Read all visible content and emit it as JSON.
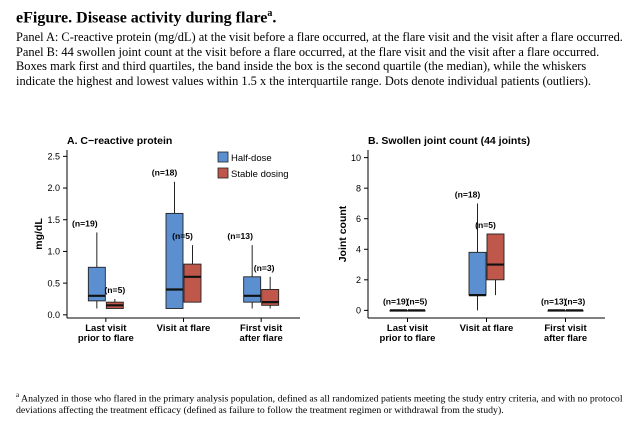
{
  "header": {
    "title": "eFigure. Disease activity during flare",
    "title_sup": "a",
    "title_end": ".",
    "caption": "Panel A: C-reactive protein (mg/dL) at the visit before a flare occurred, at the flare visit and the visit after a flare occurred. Panel B: 44 swollen joint count at the visit before a flare occurred, at the flare visit and the visit after a flare occurred. Boxes mark first and third quartiles, the band inside the box is the second quartile (the median), while the whiskers indicate the highest and lowest values within 1.5 x the interquartile range. Dots denote individual patients (outliers)."
  },
  "footnote": {
    "sup": "a",
    "text": " Analyzed in those who flared in the primary analysis population, defined as all randomized patients meeting the study entry criteria, and with no protocol deviations affecting the treatment efficacy (defined as failure to follow the treatment regimen or withdrawal from the study)."
  },
  "legend": {
    "items": [
      {
        "label": "Half-dose",
        "color": "#5b8fd0"
      },
      {
        "label": "Stable dosing",
        "color": "#c0574b"
      }
    ]
  },
  "chart_data": [
    {
      "type": "box",
      "title": "A. C−reactive protein",
      "ylabel": "mg/dL",
      "xlabel": "",
      "ylim": [
        -0.05,
        2.6
      ],
      "yticks": [
        0.0,
        0.5,
        1.0,
        1.5,
        2.0,
        2.5
      ],
      "ytick_labels": [
        "0.0",
        "0.5",
        "1.0",
        "1.5",
        "2.0",
        "2.5"
      ],
      "categories": [
        "Last visit\nprior to flare",
        "Visit at flare",
        "First visit\nafter flare"
      ],
      "series": [
        {
          "name": "Half-dose",
          "color": "#5b8fd0",
          "boxes": [
            {
              "n": "(n=19)",
              "min": 0.1,
              "q1": 0.22,
              "median": 0.3,
              "q3": 0.75,
              "max": 1.3
            },
            {
              "n": "(n=18)",
              "min": 0.1,
              "q1": 0.1,
              "median": 0.4,
              "q3": 1.6,
              "max": 2.1
            },
            {
              "n": "(n=13)",
              "min": 0.1,
              "q1": 0.2,
              "median": 0.3,
              "q3": 0.6,
              "max": 1.1
            }
          ]
        },
        {
          "name": "Stable dosing",
          "color": "#c0574b",
          "boxes": [
            {
              "n": "(n=5)",
              "min": 0.1,
              "q1": 0.1,
              "median": 0.15,
              "q3": 0.2,
              "max": 0.25
            },
            {
              "n": "(n=5)",
              "min": 0.2,
              "q1": 0.2,
              "median": 0.6,
              "q3": 0.8,
              "max": 1.1
            },
            {
              "n": "(n=3)",
              "min": 0.1,
              "q1": 0.15,
              "median": 0.2,
              "q3": 0.4,
              "max": 0.6
            }
          ]
        }
      ]
    },
    {
      "type": "box",
      "title": "B. Swollen joint count (44 joints)",
      "ylabel": "Joint count",
      "xlabel": "",
      "ylim": [
        -0.5,
        10.5
      ],
      "yticks": [
        0,
        2,
        4,
        6,
        8,
        10
      ],
      "ytick_labels": [
        "0",
        "2",
        "4",
        "6",
        "8",
        "10"
      ],
      "categories": [
        "Last visit\nprior to flare",
        "Visit at flare",
        "First visit\nafter flare"
      ],
      "series": [
        {
          "name": "Half-dose",
          "color": "#5b8fd0",
          "boxes": [
            {
              "n": "(n=19)",
              "min": 0,
              "q1": 0,
              "median": 0,
              "q3": 0,
              "max": 0
            },
            {
              "n": "(n=18)",
              "min": 0,
              "q1": 1,
              "median": 1,
              "q3": 3.8,
              "max": 7
            },
            {
              "n": "(n=13)",
              "min": 0,
              "q1": 0,
              "median": 0,
              "q3": 0,
              "max": 0
            }
          ]
        },
        {
          "name": "Stable dosing",
          "color": "#c0574b",
          "boxes": [
            {
              "n": "(n=5)",
              "min": 0,
              "q1": 0,
              "median": 0,
              "q3": 0,
              "max": 0
            },
            {
              "n": "(n=5)",
              "min": 1,
              "q1": 2,
              "median": 3,
              "q3": 5,
              "max": 5
            },
            {
              "n": "(n=3)",
              "min": 0,
              "q1": 0,
              "median": 0,
              "q3": 0,
              "max": 0
            }
          ]
        }
      ]
    }
  ]
}
